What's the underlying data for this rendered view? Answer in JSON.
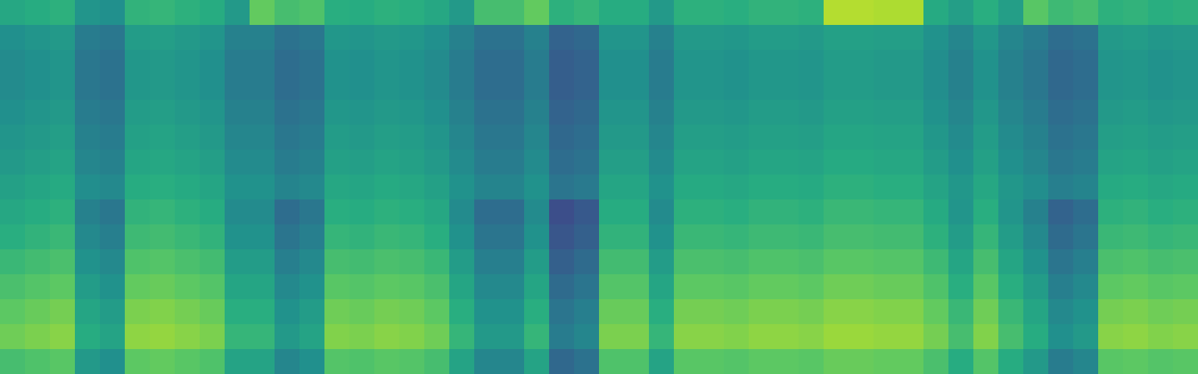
{
  "chart_data": {
    "type": "heatmap",
    "tick_labels": false,
    "zlim": [
      0,
      100
    ],
    "z": [
      [
        60,
        62,
        64,
        52,
        50,
        65,
        66,
        64,
        62,
        54,
        76,
        70,
        72,
        63,
        62,
        64,
        63,
        60,
        54,
        70,
        70,
        76,
        64,
        66,
        62,
        62,
        54,
        64,
        64,
        63,
        65,
        65,
        64,
        89,
        89,
        88,
        88,
        61,
        56,
        63,
        56,
        74,
        68,
        70,
        64,
        65,
        63,
        64
      ],
      [
        50,
        52,
        54,
        42,
        40,
        55,
        56,
        54,
        52,
        44,
        44,
        38,
        40,
        53,
        52,
        54,
        53,
        50,
        44,
        38,
        38,
        44,
        32,
        34,
        52,
        52,
        44,
        54,
        54,
        53,
        55,
        55,
        54,
        57,
        57,
        56,
        56,
        51,
        46,
        53,
        46,
        42,
        36,
        38,
        54,
        55,
        53,
        54
      ],
      [
        48,
        50,
        52,
        40,
        38,
        53,
        54,
        52,
        50,
        42,
        42,
        36,
        38,
        51,
        50,
        52,
        51,
        48,
        42,
        36,
        36,
        42,
        30,
        32,
        50,
        50,
        42,
        52,
        52,
        51,
        53,
        53,
        52,
        55,
        55,
        54,
        54,
        49,
        44,
        51,
        44,
        40,
        34,
        36,
        52,
        53,
        51,
        52
      ],
      [
        48,
        50,
        52,
        40,
        38,
        53,
        54,
        52,
        50,
        42,
        42,
        36,
        38,
        51,
        50,
        52,
        51,
        48,
        42,
        36,
        36,
        42,
        30,
        32,
        50,
        50,
        42,
        52,
        52,
        51,
        53,
        53,
        52,
        55,
        55,
        54,
        54,
        49,
        44,
        51,
        44,
        40,
        34,
        36,
        52,
        53,
        51,
        52
      ],
      [
        50,
        52,
        54,
        42,
        40,
        55,
        56,
        54,
        52,
        44,
        44,
        38,
        40,
        53,
        52,
        54,
        53,
        50,
        44,
        38,
        38,
        44,
        32,
        34,
        52,
        52,
        44,
        54,
        54,
        53,
        55,
        55,
        54,
        57,
        57,
        56,
        56,
        51,
        46,
        53,
        46,
        42,
        36,
        38,
        54,
        55,
        53,
        54
      ],
      [
        52,
        54,
        56,
        44,
        42,
        57,
        58,
        56,
        54,
        46,
        46,
        40,
        42,
        55,
        54,
        56,
        55,
        52,
        46,
        40,
        40,
        46,
        34,
        36,
        54,
        54,
        46,
        56,
        56,
        55,
        57,
        57,
        56,
        59,
        59,
        58,
        58,
        53,
        48,
        55,
        48,
        44,
        38,
        40,
        56,
        57,
        55,
        56
      ],
      [
        54,
        56,
        58,
        46,
        44,
        59,
        60,
        58,
        56,
        48,
        48,
        42,
        44,
        57,
        56,
        58,
        57,
        54,
        48,
        42,
        42,
        48,
        36,
        38,
        56,
        56,
        48,
        58,
        58,
        57,
        59,
        59,
        58,
        61,
        61,
        60,
        60,
        55,
        50,
        57,
        50,
        46,
        40,
        42,
        58,
        59,
        57,
        58
      ],
      [
        57,
        59,
        61,
        49,
        47,
        62,
        63,
        61,
        59,
        51,
        51,
        45,
        47,
        60,
        59,
        61,
        60,
        57,
        51,
        45,
        45,
        51,
        39,
        41,
        59,
        59,
        51,
        61,
        61,
        60,
        62,
        62,
        61,
        64,
        64,
        63,
        63,
        58,
        53,
        60,
        53,
        49,
        43,
        45,
        61,
        62,
        60,
        61
      ],
      [
        60,
        62,
        64,
        44,
        40,
        65,
        66,
        64,
        62,
        48,
        48,
        36,
        40,
        63,
        62,
        64,
        63,
        60,
        48,
        36,
        36,
        48,
        24,
        28,
        62,
        62,
        48,
        64,
        64,
        63,
        65,
        65,
        64,
        67,
        67,
        66,
        66,
        61,
        52,
        63,
        52,
        44,
        32,
        36,
        64,
        65,
        63,
        64
      ],
      [
        63,
        65,
        67,
        47,
        43,
        68,
        69,
        67,
        65,
        51,
        51,
        39,
        43,
        66,
        65,
        67,
        66,
        63,
        51,
        39,
        39,
        51,
        27,
        31,
        65,
        65,
        51,
        67,
        67,
        66,
        68,
        68,
        67,
        70,
        70,
        69,
        69,
        64,
        55,
        66,
        55,
        47,
        35,
        39,
        67,
        68,
        66,
        67
      ],
      [
        67,
        69,
        71,
        51,
        47,
        72,
        73,
        71,
        69,
        55,
        55,
        43,
        47,
        70,
        69,
        71,
        70,
        67,
        55,
        43,
        43,
        55,
        31,
        35,
        69,
        69,
        55,
        71,
        71,
        70,
        72,
        72,
        71,
        74,
        74,
        73,
        73,
        68,
        59,
        70,
        59,
        51,
        39,
        43,
        71,
        72,
        70,
        71
      ],
      [
        71,
        73,
        75,
        55,
        51,
        76,
        77,
        75,
        73,
        59,
        59,
        47,
        51,
        74,
        73,
        75,
        74,
        71,
        59,
        47,
        47,
        59,
        35,
        39,
        73,
        73,
        59,
        75,
        75,
        74,
        76,
        76,
        75,
        78,
        78,
        77,
        77,
        72,
        63,
        74,
        63,
        55,
        43,
        47,
        75,
        76,
        74,
        75
      ],
      [
        75,
        77,
        79,
        59,
        55,
        80,
        81,
        79,
        77,
        63,
        63,
        51,
        55,
        78,
        77,
        79,
        78,
        75,
        63,
        51,
        51,
        63,
        39,
        43,
        77,
        77,
        63,
        79,
        79,
        78,
        80,
        80,
        79,
        82,
        82,
        81,
        81,
        76,
        67,
        78,
        67,
        59,
        47,
        51,
        79,
        80,
        78,
        79
      ],
      [
        78,
        80,
        82,
        62,
        58,
        83,
        84,
        82,
        80,
        66,
        66,
        54,
        58,
        81,
        80,
        82,
        81,
        78,
        66,
        54,
        54,
        66,
        42,
        46,
        80,
        80,
        66,
        82,
        82,
        81,
        83,
        83,
        82,
        85,
        85,
        84,
        84,
        79,
        70,
        81,
        70,
        62,
        50,
        54,
        82,
        83,
        81,
        82
      ],
      [
        70,
        72,
        74,
        54,
        50,
        75,
        76,
        74,
        72,
        58,
        58,
        46,
        50,
        73,
        72,
        74,
        73,
        70,
        58,
        46,
        46,
        58,
        34,
        38,
        72,
        72,
        58,
        74,
        74,
        73,
        75,
        75,
        74,
        77,
        77,
        76,
        76,
        71,
        62,
        73,
        62,
        54,
        42,
        46,
        74,
        75,
        73,
        74
      ]
    ]
  }
}
